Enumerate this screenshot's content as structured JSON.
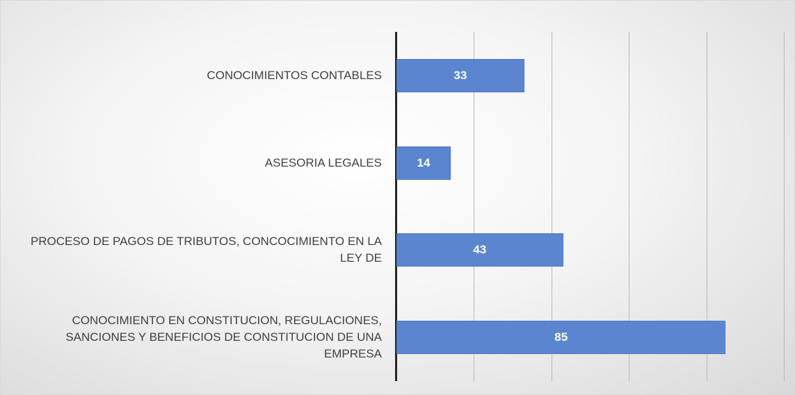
{
  "chart_data": {
    "type": "bar",
    "orientation": "horizontal",
    "categories": [
      "CONOCIMIENTOS CONTABLES",
      "ASESORIA LEGALES",
      "PROCESO DE PAGOS DE TRIBUTOS, CONCOCIMIENTO EN LA LEY DE",
      "CONOCIMIENTO EN CONSTITUCION, REGULACIONES, SANCIONES Y BENEFICIOS DE CONSTITUCION DE UNA EMPRESA"
    ],
    "values": [
      33,
      14,
      43,
      85
    ],
    "color": "#5b86cf",
    "xlim": [
      0,
      100
    ],
    "xticks": [
      0,
      20,
      40,
      60,
      80,
      100
    ],
    "grid": true
  }
}
